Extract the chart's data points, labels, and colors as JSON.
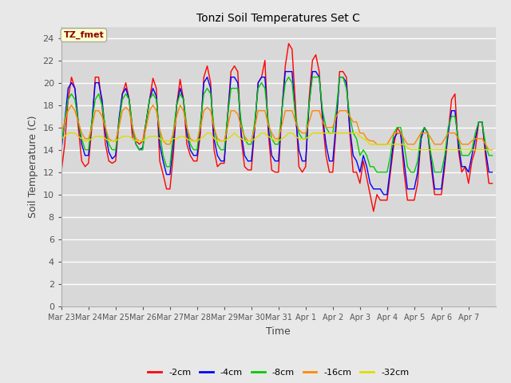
{
  "title": "Tonzi Soil Temperatures Set C",
  "xlabel": "Time",
  "ylabel": "Soil Temperature (C)",
  "ylim": [
    0,
    25
  ],
  "yticks": [
    0,
    2,
    4,
    6,
    8,
    10,
    12,
    14,
    16,
    18,
    20,
    22,
    24
  ],
  "fig_bg_color": "#e8e8e8",
  "plot_bg_color": "#d8d8d8",
  "legend_label": "TZ_fmet",
  "series_labels": [
    "-2cm",
    "-4cm",
    "-8cm",
    "-16cm",
    "-32cm"
  ],
  "series_colors": [
    "#ff0000",
    "#0000ff",
    "#00cc00",
    "#ff8800",
    "#dddd00"
  ],
  "xtick_labels": [
    "Mar 23",
    "Mar 24",
    "Mar 25",
    "Mar 26",
    "Mar 27",
    "Mar 28",
    "Mar 29",
    "Mar 30",
    "Mar 31",
    "Apr 1",
    "Apr 2",
    "Apr 3",
    "Apr 4",
    "Apr 5",
    "Apr 6",
    "Apr 7"
  ],
  "n_days": 16,
  "pts_per_day": 8,
  "data_2cm": [
    12.0,
    14.5,
    18.5,
    20.5,
    19.5,
    16.0,
    13.0,
    12.5,
    12.8,
    16.0,
    20.5,
    20.5,
    18.0,
    14.5,
    13.0,
    12.8,
    13.0,
    16.5,
    19.0,
    20.0,
    18.5,
    15.0,
    14.8,
    14.5,
    14.8,
    16.5,
    18.5,
    20.4,
    19.5,
    13.0,
    11.8,
    10.5,
    10.5,
    13.5,
    18.0,
    20.3,
    18.5,
    14.5,
    13.5,
    13.0,
    13.0,
    15.5,
    20.5,
    21.5,
    20.0,
    14.0,
    12.5,
    12.8,
    12.8,
    17.0,
    21.0,
    21.5,
    21.0,
    15.0,
    12.5,
    12.2,
    12.2,
    16.0,
    20.0,
    20.5,
    22.0,
    15.5,
    12.2,
    12.0,
    12.0,
    17.5,
    21.5,
    23.5,
    23.0,
    18.0,
    12.5,
    12.0,
    12.5,
    18.5,
    22.0,
    22.5,
    21.0,
    16.5,
    13.5,
    12.0,
    12.0,
    16.0,
    21.0,
    21.0,
    20.5,
    15.5,
    12.0,
    12.0,
    11.0,
    13.0,
    11.5,
    10.0,
    8.5,
    10.0,
    9.5,
    9.5,
    9.5,
    12.0,
    14.5,
    16.0,
    15.5,
    12.0,
    9.5,
    9.5,
    9.5,
    11.0,
    15.0,
    16.0,
    15.5,
    12.5,
    10.0,
    10.0,
    10.0,
    12.5,
    15.5,
    18.5,
    19.0,
    14.0,
    12.0,
    12.5,
    11.0,
    13.0,
    14.0,
    16.5,
    16.5,
    13.5,
    11.0,
    11.0
  ],
  "data_4cm": [
    14.0,
    16.5,
    19.5,
    20.0,
    19.5,
    16.5,
    14.5,
    13.5,
    13.5,
    16.5,
    20.0,
    20.0,
    18.5,
    15.5,
    13.8,
    13.2,
    13.5,
    16.8,
    19.0,
    19.5,
    18.5,
    15.8,
    14.5,
    14.0,
    14.2,
    16.5,
    18.5,
    19.5,
    18.8,
    14.5,
    13.0,
    11.8,
    11.8,
    14.5,
    18.0,
    19.5,
    18.5,
    15.5,
    14.0,
    13.5,
    13.5,
    16.0,
    20.0,
    20.5,
    19.5,
    15.0,
    13.5,
    13.0,
    13.0,
    17.0,
    20.5,
    20.5,
    20.0,
    15.5,
    13.5,
    13.0,
    13.0,
    16.0,
    20.0,
    20.5,
    20.5,
    16.0,
    13.5,
    13.0,
    13.0,
    17.5,
    21.0,
    21.0,
    21.0,
    17.0,
    14.0,
    13.0,
    13.0,
    18.0,
    21.0,
    21.0,
    20.5,
    17.0,
    14.5,
    13.0,
    13.0,
    16.5,
    20.5,
    20.5,
    20.0,
    16.0,
    13.5,
    13.0,
    12.0,
    13.5,
    12.5,
    11.0,
    10.5,
    10.5,
    10.5,
    10.0,
    10.0,
    12.5,
    15.0,
    15.5,
    15.5,
    13.0,
    10.5,
    10.5,
    10.5,
    12.0,
    15.0,
    16.0,
    15.5,
    13.0,
    10.5,
    10.5,
    10.5,
    13.0,
    15.5,
    17.5,
    17.5,
    14.5,
    12.5,
    12.5,
    12.0,
    13.5,
    15.0,
    16.5,
    16.5,
    14.0,
    12.0,
    12.0
  ],
  "data_8cm": [
    14.5,
    16.5,
    18.5,
    19.0,
    18.5,
    16.5,
    15.0,
    14.0,
    14.0,
    16.5,
    18.5,
    19.0,
    18.0,
    16.0,
    14.5,
    14.0,
    14.0,
    16.5,
    18.5,
    19.0,
    18.5,
    16.0,
    14.5,
    14.0,
    14.0,
    16.5,
    18.5,
    19.0,
    18.5,
    15.5,
    13.5,
    12.5,
    12.5,
    15.5,
    18.0,
    19.0,
    18.5,
    16.0,
    14.5,
    14.0,
    14.0,
    16.5,
    19.0,
    19.5,
    19.0,
    16.0,
    14.5,
    14.0,
    14.0,
    17.0,
    19.5,
    19.5,
    19.5,
    16.5,
    15.0,
    14.5,
    14.5,
    16.5,
    19.5,
    20.0,
    19.5,
    16.5,
    15.0,
    14.5,
    14.5,
    17.5,
    20.0,
    20.5,
    20.0,
    17.0,
    15.5,
    15.0,
    15.0,
    18.0,
    20.5,
    20.5,
    20.5,
    17.5,
    16.0,
    15.5,
    15.5,
    17.5,
    20.5,
    20.5,
    19.5,
    17.0,
    15.5,
    15.0,
    13.5,
    14.0,
    13.5,
    12.5,
    12.5,
    12.0,
    12.0,
    12.0,
    12.0,
    13.5,
    15.5,
    16.0,
    16.0,
    14.5,
    12.5,
    12.0,
    12.0,
    13.0,
    15.5,
    16.0,
    15.5,
    13.5,
    12.0,
    12.0,
    12.0,
    13.5,
    16.0,
    17.0,
    17.0,
    15.0,
    13.5,
    13.5,
    13.5,
    14.0,
    15.5,
    16.5,
    16.5,
    14.5,
    13.5,
    13.5
  ],
  "data_16cm": [
    15.5,
    16.5,
    17.5,
    18.0,
    17.5,
    16.5,
    15.5,
    15.0,
    15.0,
    16.0,
    17.5,
    17.5,
    17.0,
    16.0,
    15.0,
    14.8,
    14.8,
    16.0,
    17.5,
    17.8,
    17.5,
    16.0,
    15.0,
    14.8,
    14.8,
    16.0,
    17.5,
    18.0,
    17.5,
    15.8,
    14.8,
    14.5,
    14.5,
    15.5,
    17.0,
    18.0,
    17.5,
    16.0,
    15.0,
    14.8,
    14.8,
    16.0,
    17.5,
    17.8,
    17.5,
    16.0,
    15.0,
    14.8,
    14.8,
    16.0,
    17.5,
    17.5,
    17.2,
    16.0,
    15.2,
    14.8,
    14.8,
    16.0,
    17.5,
    17.5,
    17.5,
    16.2,
    15.5,
    15.0,
    15.0,
    16.2,
    17.5,
    17.5,
    17.5,
    16.5,
    15.8,
    15.5,
    15.5,
    16.5,
    17.5,
    17.5,
    17.5,
    16.5,
    16.0,
    16.0,
    16.0,
    17.0,
    17.5,
    17.5,
    17.5,
    17.0,
    16.5,
    16.5,
    15.5,
    15.5,
    15.0,
    14.8,
    14.8,
    14.5,
    14.5,
    14.5,
    14.5,
    15.0,
    15.5,
    15.5,
    15.5,
    15.0,
    14.5,
    14.5,
    14.5,
    15.0,
    15.5,
    15.5,
    15.5,
    15.0,
    14.5,
    14.5,
    14.5,
    15.0,
    15.5,
    15.5,
    15.5,
    15.0,
    14.5,
    14.5,
    14.5,
    14.8,
    15.0,
    15.0,
    15.0,
    14.5,
    14.0,
    14.0
  ],
  "data_32cm": [
    15.0,
    15.2,
    15.5,
    15.5,
    15.5,
    15.2,
    15.0,
    14.8,
    14.8,
    15.0,
    15.2,
    15.2,
    15.2,
    15.0,
    14.8,
    14.8,
    14.8,
    15.0,
    15.2,
    15.2,
    15.2,
    15.0,
    14.8,
    14.8,
    14.8,
    15.0,
    15.2,
    15.2,
    15.2,
    15.0,
    14.8,
    14.8,
    14.8,
    15.0,
    15.0,
    15.2,
    15.2,
    15.0,
    14.8,
    14.8,
    14.8,
    15.0,
    15.2,
    15.5,
    15.5,
    15.0,
    14.8,
    14.8,
    14.8,
    15.0,
    15.2,
    15.5,
    15.2,
    15.0,
    14.8,
    14.8,
    14.8,
    15.0,
    15.2,
    15.5,
    15.5,
    15.2,
    15.0,
    14.8,
    14.8,
    15.0,
    15.2,
    15.5,
    15.5,
    15.2,
    15.0,
    15.0,
    15.0,
    15.2,
    15.5,
    15.5,
    15.5,
    15.5,
    15.5,
    15.5,
    15.5,
    15.5,
    15.5,
    15.5,
    15.5,
    15.5,
    15.5,
    15.5,
    15.2,
    15.0,
    14.8,
    14.5,
    14.5,
    14.5,
    14.5,
    14.5,
    14.5,
    14.5,
    14.5,
    14.5,
    14.5,
    14.5,
    14.2,
    14.0,
    14.0,
    14.0,
    14.0,
    14.0,
    14.0,
    14.0,
    14.0,
    14.0,
    14.0,
    14.0,
    14.0,
    14.0,
    14.0,
    14.0,
    14.0,
    14.0,
    14.0,
    14.0,
    14.0,
    14.0,
    14.0,
    14.0,
    14.0,
    14.0
  ]
}
